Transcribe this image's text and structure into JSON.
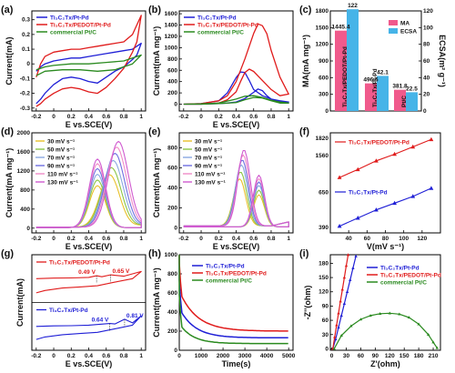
{
  "chart_data": [
    {
      "id": "a",
      "label": "(a)",
      "type": "line",
      "xlabel": "E vs.SCE(V)",
      "ylabel": "Current(mA)",
      "xlim": [
        -0.25,
        1.05
      ],
      "xticks": [
        -0.2,
        0.0,
        0.2,
        0.4,
        0.6,
        0.8,
        1.0
      ],
      "ylim": [
        -0.32,
        0.36
      ],
      "yticks": [
        -0.3,
        -0.2,
        -0.1,
        0.0,
        0.1,
        0.2,
        0.3
      ],
      "legend": "top-left",
      "series": [
        {
          "name": "Ti₃C₂Tx/Pt-Pd",
          "color": "#1f1fd6",
          "x": [
            -0.2,
            -0.15,
            -0.1,
            0.0,
            0.1,
            0.2,
            0.3,
            0.4,
            0.5,
            0.6,
            0.7,
            0.8,
            0.9,
            1.0,
            0.95,
            0.9,
            0.8,
            0.7,
            0.6,
            0.5,
            0.4,
            0.3,
            0.2,
            0.1,
            0.0,
            -0.1,
            -0.15,
            -0.2
          ],
          "y": [
            -0.05,
            -0.02,
            0.0,
            0.02,
            0.03,
            0.04,
            0.04,
            0.05,
            0.06,
            0.07,
            0.08,
            0.09,
            0.1,
            0.14,
            0.06,
            0.03,
            -0.02,
            -0.05,
            -0.09,
            -0.13,
            -0.12,
            -0.1,
            -0.09,
            -0.1,
            -0.14,
            -0.2,
            -0.24,
            -0.27
          ]
        },
        {
          "name": "Ti₃C₂Tx/PEDOT/Pt-Pd",
          "color": "#e01b1b",
          "x": [
            -0.2,
            -0.15,
            -0.1,
            0.0,
            0.1,
            0.2,
            0.3,
            0.4,
            0.5,
            0.6,
            0.7,
            0.8,
            0.9,
            1.0,
            0.95,
            0.9,
            0.8,
            0.7,
            0.6,
            0.5,
            0.4,
            0.3,
            0.2,
            0.1,
            0.0,
            -0.1,
            -0.15,
            -0.2
          ],
          "y": [
            -0.09,
            0.0,
            0.05,
            0.08,
            0.09,
            0.1,
            0.1,
            0.11,
            0.12,
            0.13,
            0.14,
            0.15,
            0.2,
            0.33,
            0.15,
            0.08,
            -0.03,
            -0.1,
            -0.16,
            -0.2,
            -0.19,
            -0.17,
            -0.16,
            -0.17,
            -0.2,
            -0.24,
            -0.27,
            -0.29
          ]
        },
        {
          "name": "commercial Pt/C",
          "color": "#2a8a1f",
          "x": [
            -0.2,
            -0.1,
            0.0,
            0.2,
            0.4,
            0.6,
            0.8,
            1.0,
            0.9,
            0.7,
            0.5,
            0.3,
            0.1,
            -0.1,
            -0.2
          ],
          "y": [
            -0.04,
            -0.02,
            -0.01,
            0.0,
            0.0,
            0.01,
            0.02,
            0.06,
            0.0,
            -0.04,
            -0.05,
            -0.04,
            -0.04,
            -0.05,
            -0.08
          ]
        }
      ]
    },
    {
      "id": "b",
      "label": "(b)",
      "type": "line",
      "xlabel": "E vs.SCE(V)",
      "ylabel": "Current(mA mg⁻¹)",
      "xlim": [
        -0.25,
        1.05
      ],
      "xticks": [
        -0.2,
        0.0,
        0.2,
        0.4,
        0.6,
        0.8,
        1.0
      ],
      "ylim": [
        -120,
        1650
      ],
      "yticks": [
        0,
        200,
        400,
        600,
        800,
        1000,
        1200,
        1400,
        1600
      ],
      "legend": "top-left",
      "series": [
        {
          "name": "Ti₃C₂Tx/Pt-Pd",
          "color": "#1f1fd6",
          "x": [
            -0.2,
            0.0,
            0.2,
            0.3,
            0.4,
            0.45,
            0.5,
            0.55,
            0.6,
            0.7,
            0.8,
            0.9,
            1.0,
            0.9,
            0.8,
            0.75,
            0.7,
            0.65,
            0.6,
            0.5,
            0.4,
            0.3,
            0.2,
            0.0,
            -0.2
          ],
          "y": [
            0,
            10,
            60,
            200,
            470,
            570,
            560,
            420,
            260,
            150,
            90,
            60,
            40,
            40,
            90,
            150,
            240,
            270,
            210,
            100,
            40,
            20,
            10,
            0,
            0
          ]
        },
        {
          "name": "Ti₃C₂Tx/PEDOT/Pt-Pd",
          "color": "#e01b1b",
          "x": [
            -0.2,
            0.0,
            0.2,
            0.3,
            0.4,
            0.5,
            0.6,
            0.65,
            0.7,
            0.75,
            0.8,
            0.9,
            1.0,
            0.9,
            0.8,
            0.7,
            0.6,
            0.55,
            0.5,
            0.45,
            0.4,
            0.3,
            0.2,
            0.0,
            -0.2
          ],
          "y": [
            0,
            10,
            60,
            150,
            400,
            800,
            1250,
            1420,
            1390,
            1250,
            950,
            480,
            180,
            150,
            260,
            420,
            580,
            620,
            560,
            400,
            220,
            80,
            20,
            0,
            0
          ]
        },
        {
          "name": "commercial Pt/C",
          "color": "#2a8a1f",
          "x": [
            -0.2,
            0.0,
            0.2,
            0.4,
            0.5,
            0.6,
            0.7,
            0.8,
            0.9,
            1.0,
            0.9,
            0.8,
            0.7,
            0.6,
            0.5,
            0.4,
            0.2,
            0.0,
            -0.2
          ],
          "y": [
            0,
            5,
            20,
            90,
            140,
            150,
            120,
            70,
            40,
            20,
            20,
            60,
            110,
            120,
            80,
            30,
            10,
            0,
            0
          ]
        }
      ]
    },
    {
      "id": "c",
      "label": "(c)",
      "type": "bar",
      "ylabel": "MA(mA mg⁻¹)",
      "y2label": "ECSA(m² g⁻¹)",
      "ylim": [
        0,
        1800
      ],
      "yticks": [
        0,
        300,
        600,
        900,
        1200,
        1500,
        1800
      ],
      "y2lim": [
        0,
        120
      ],
      "y2ticks": [
        0,
        20,
        40,
        60,
        80,
        100,
        120
      ],
      "legend": "top-right",
      "legend_entries": [
        {
          "name": "MA",
          "color": "#f05a8c"
        },
        {
          "name": "ECSA",
          "color": "#46b4e8"
        }
      ],
      "groups": [
        {
          "name": "Ti₃C₂Tx/PEDOT/Pt-Pd",
          "ma": 1445.4,
          "ecsa": 122,
          "ma_label": "1445.4",
          "ecsa_label": "122"
        },
        {
          "name": "Ti₃C₂Tx/Pt-Pd",
          "ma": 496.6,
          "ecsa": 42.1,
          "ma_label": "496.6",
          "ecsa_label": "42.1"
        },
        {
          "name": "Pt/C",
          "ma": 381.8,
          "ecsa": 22.5,
          "ma_label": "381.8",
          "ecsa_label": "22.5"
        }
      ]
    },
    {
      "id": "d",
      "label": "(d)",
      "type": "line",
      "xlabel": "E vs.SCE(V)",
      "ylabel": "Current(mA mg⁻¹)",
      "xlim": [
        -0.25,
        1.05
      ],
      "xticks": [
        -0.2,
        0.0,
        0.2,
        0.4,
        0.6,
        0.8,
        1.0
      ],
      "ylim": [
        -100,
        2000
      ],
      "yticks": [
        0,
        400,
        800,
        1200,
        1600,
        2000
      ],
      "legend": "top-left",
      "series": [
        {
          "name": "30 mV s⁻¹",
          "color": "#e8c02a",
          "peak": 1100,
          "pos": 0.64
        },
        {
          "name": "50 mV s⁻¹",
          "color": "#8cc646",
          "peak": 1250,
          "pos": 0.66
        },
        {
          "name": "70 mV s⁻¹",
          "color": "#8aa8e0",
          "peak": 1400,
          "pos": 0.68
        },
        {
          "name": "90 mV s⁻¹",
          "color": "#6e6ee0",
          "peak": 1550,
          "pos": 0.7
        },
        {
          "name": "110 mV s⁻¹",
          "color": "#f08cc8",
          "peak": 1680,
          "pos": 0.72
        },
        {
          "name": "130 mV s⁻¹",
          "color": "#d05ad0",
          "peak": 1800,
          "pos": 0.74
        }
      ]
    },
    {
      "id": "e",
      "label": "(e)",
      "type": "line",
      "xlabel": "E vs.SCE(V)",
      "ylabel": "Current(mA mg⁻¹)",
      "xlim": [
        -0.25,
        1.05
      ],
      "xticks": [
        -0.2,
        0.0,
        0.2,
        0.4,
        0.6,
        0.8,
        1.0
      ],
      "ylim": [
        -50,
        950
      ],
      "yticks": [
        0,
        200,
        400,
        600,
        800
      ],
      "legend": "top-left",
      "series": [
        {
          "name": "30 mV s⁻¹",
          "color": "#e8c02a",
          "peak": 470,
          "pos": 0.44
        },
        {
          "name": "50 mV s⁻¹",
          "color": "#8cc646",
          "peak": 540,
          "pos": 0.45
        },
        {
          "name": "70 mV s⁻¹",
          "color": "#8aa8e0",
          "peak": 610,
          "pos": 0.46
        },
        {
          "name": "90 mV s⁻¹",
          "color": "#6e6ee0",
          "peak": 660,
          "pos": 0.47
        },
        {
          "name": "110 mV s⁻¹",
          "color": "#f08cc8",
          "peak": 710,
          "pos": 0.48
        },
        {
          "name": "130 mV s⁻¹",
          "color": "#d05ad0",
          "peak": 760,
          "pos": 0.49
        }
      ]
    },
    {
      "id": "f",
      "label": "(f)",
      "type": "line",
      "xlabel": "V(mV s⁻¹)",
      "xlim": [
        20,
        140
      ],
      "xticks": [
        40,
        60,
        80,
        100,
        120
      ],
      "ylim": [
        300,
        1900
      ],
      "yticks": [
        390,
        650,
        1560,
        1820
      ],
      "legend": "inline",
      "series": [
        {
          "name": "Ti₃C₂Tx/PEDOT/Pt-Pd",
          "color": "#e01b1b",
          "marker": "triangle",
          "x": [
            30,
            50,
            70,
            90,
            110,
            130
          ],
          "y": [
            1230,
            1350,
            1480,
            1580,
            1690,
            1800
          ]
        },
        {
          "name": "Ti₃C₂Tx/Pt-Pd",
          "color": "#1f1fd6",
          "marker": "triangle",
          "x": [
            30,
            50,
            70,
            90,
            110,
            130
          ],
          "y": [
            400,
            460,
            520,
            570,
            620,
            680
          ]
        }
      ]
    },
    {
      "id": "g",
      "label": "(g)",
      "type": "line",
      "xlabel": "E vs.SCE(V)",
      "ylabel": "Current(mA)",
      "xlim": [
        -0.25,
        1.05
      ],
      "xticks": [
        -0.2,
        0.0,
        0.2,
        0.4,
        0.6,
        0.8,
        1.0
      ],
      "legend": "inline",
      "series": [
        {
          "name": "Ti₃C₂Tx/PEDOT/Pt-Pd",
          "color": "#e01b1b",
          "x": [
            -0.2,
            0.0,
            0.2,
            0.4,
            0.49,
            0.55,
            0.65,
            0.8,
            1.0,
            0.9,
            0.7,
            0.5,
            0.3,
            0.1,
            -0.1,
            -0.2
          ],
          "y": [
            0.0,
            0.02,
            0.03,
            0.05,
            0.12,
            0.08,
            0.16,
            0.1,
            0.3,
            0.0,
            -0.15,
            -0.3,
            -0.35,
            -0.4,
            -0.5,
            -0.6
          ]
        },
        {
          "name": "Ti₃C₂Tx/Pt-Pd",
          "color": "#1f1fd6",
          "x": [
            -0.2,
            0.0,
            0.2,
            0.4,
            0.64,
            0.7,
            0.81,
            0.9,
            1.0,
            0.9,
            0.7,
            0.5,
            0.3,
            0.1,
            -0.1,
            -0.2
          ],
          "y": [
            0.0,
            0.02,
            0.03,
            0.05,
            0.12,
            0.1,
            0.3,
            0.15,
            0.45,
            0.05,
            -0.1,
            -0.25,
            -0.3,
            -0.35,
            -0.45,
            -0.55
          ]
        }
      ],
      "annotations": [
        {
          "text": "0.65 V",
          "series": 0,
          "x": 0.65
        },
        {
          "text": "0.49 V",
          "series": 0,
          "x": 0.49
        },
        {
          "text": "0.81 V",
          "series": 1,
          "x": 0.81
        },
        {
          "text": "0.64 V",
          "series": 1,
          "x": 0.64
        }
      ]
    },
    {
      "id": "h",
      "label": "(h)",
      "type": "line",
      "xlabel": "Time(s)",
      "ylabel": "Current(mA mg⁻¹)",
      "xlim": [
        0,
        5200
      ],
      "xticks": [
        0,
        1000,
        2000,
        3000,
        4000,
        5000
      ],
      "ylim": [
        0,
        1000
      ],
      "yticks": [
        0,
        200,
        400,
        600,
        800,
        1000
      ],
      "legend": "top-right",
      "series": [
        {
          "name": "Ti₃C₂Tx/Pt-Pd",
          "color": "#1f1fd6",
          "start": 440,
          "end": 130,
          "k": 700
        },
        {
          "name": "Ti₃C₂Tx/PEDOT/Pt-Pd",
          "color": "#e01b1b",
          "start": 620,
          "end": 200,
          "k": 800
        },
        {
          "name": "commercial Pt/C",
          "color": "#2a8a1f",
          "start": 280,
          "end": 70,
          "k": 600
        }
      ]
    },
    {
      "id": "i",
      "label": "(i)",
      "type": "line",
      "xlabel": "Z'(ohm)",
      "ylabel": "-Z''(ohm)",
      "xlim": [
        -3,
        225
      ],
      "xticks": [
        0,
        30,
        60,
        90,
        120,
        150,
        180,
        210
      ],
      "ylim": [
        -3,
        198
      ],
      "yticks": [
        0,
        30,
        60,
        90,
        120,
        150,
        180
      ],
      "legend": "top-right",
      "series": [
        {
          "name": "Ti₃C₂Tx/Pt-Pd",
          "color": "#1f1fd6",
          "x": [
            2,
            8,
            14,
            20,
            26,
            32,
            38,
            44,
            50
          ],
          "y": [
            0,
            20,
            45,
            70,
            95,
            120,
            145,
            170,
            195
          ]
        },
        {
          "name": "Ti₃C₂Tx/PEDOT/Pt-Pd",
          "color": "#e01b1b",
          "x": [
            2,
            6,
            10,
            14,
            18,
            22,
            26,
            30,
            34
          ],
          "y": [
            0,
            25,
            50,
            75,
            100,
            125,
            150,
            175,
            198
          ]
        },
        {
          "name": "commercial Pt/C",
          "color": "#2a8a1f",
          "x": [
            5,
            20,
            40,
            60,
            80,
            100,
            120,
            140,
            160,
            180,
            200,
            210,
            218
          ],
          "y": [
            0,
            28,
            48,
            62,
            70,
            74,
            75,
            73,
            66,
            52,
            30,
            14,
            2
          ]
        }
      ]
    }
  ]
}
